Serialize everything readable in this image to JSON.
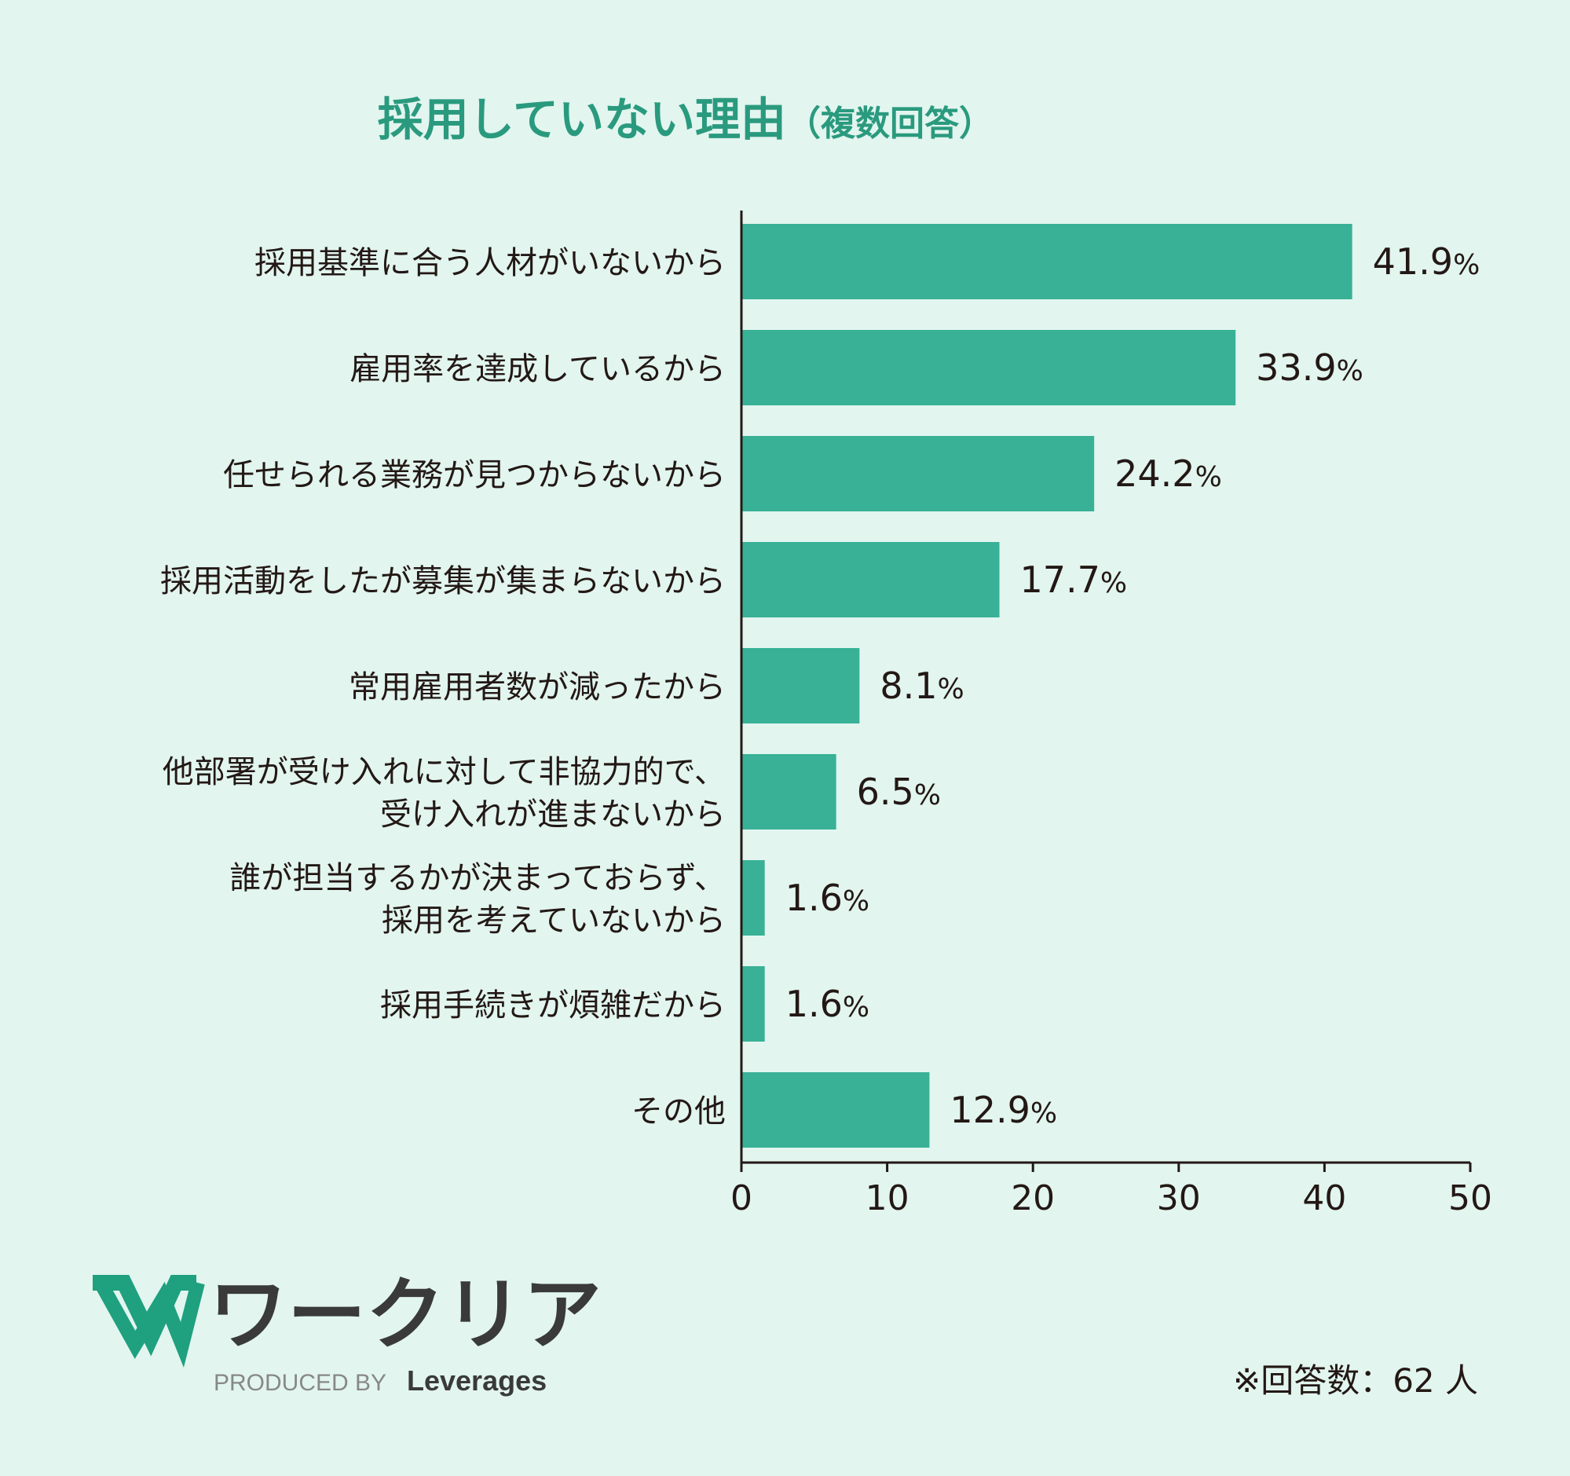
{
  "colors": {
    "background": "#e2f5ef",
    "bar": "#38b196",
    "title": "#2a9a7e",
    "text": "#231815",
    "axis": "#231815",
    "logo_green": "#1fa07f",
    "logo_gray": "#888888"
  },
  "chart_data": {
    "type": "bar",
    "orientation": "horizontal",
    "title": "採用していない理由",
    "subtitle": "（複数回答）",
    "xlim": [
      0,
      50
    ],
    "xticks": [
      "0",
      "10",
      "20",
      "30",
      "40",
      "50"
    ],
    "grid": false,
    "categories": [
      [
        "採用基準に合う人材がいないから"
      ],
      [
        "雇用率を達成しているから"
      ],
      [
        "任せられる業務が見つからないから"
      ],
      [
        "採用活動をしたが募集が集まらないから"
      ],
      [
        "常用雇用者数が減ったから"
      ],
      [
        "他部署が受け入れに対して非協力的で、",
        "受け入れが進まないから"
      ],
      [
        "誰が担当するかが決まっておらず、",
        "採用を考えていないから"
      ],
      [
        "採用手続きが煩雑だから"
      ],
      [
        "その他"
      ]
    ],
    "values": [
      41.9,
      33.9,
      24.2,
      17.7,
      8.1,
      6.5,
      1.6,
      1.6,
      12.9
    ],
    "value_labels": [
      "41.9",
      "33.9",
      "24.2",
      "17.7",
      "8.1",
      "6.5",
      "1.6",
      "1.6",
      "12.9"
    ],
    "value_unit": "%"
  },
  "footer": {
    "logo_text": "ワークリア",
    "produced_by": "PRODUCED BY",
    "brand": "Leverages",
    "note": "※回答数：62 人"
  }
}
